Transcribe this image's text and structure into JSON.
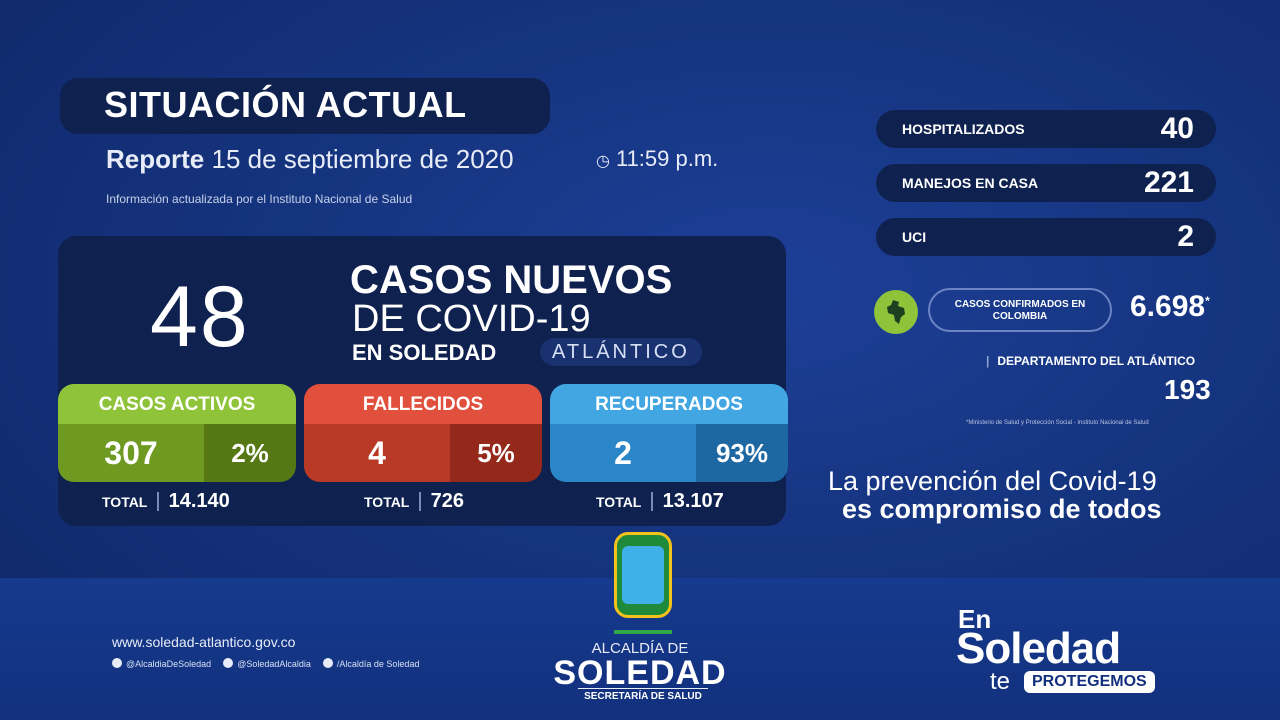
{
  "header": {
    "title": "SITUACIÓN ACTUAL",
    "report_label": "Reporte",
    "report_date": "15 de septiembre de 2020",
    "report_time": "11:59 p.m.",
    "source": "Información actualizada por el Instituto Nacional de Salud"
  },
  "new_cases": {
    "number": "48",
    "line1": "CASOS NUEVOS",
    "line2": "DE COVID-19",
    "line3": "EN SOLEDAD",
    "region": "ATLÁNTICO"
  },
  "cards": {
    "active": {
      "label": "CASOS ACTIVOS",
      "value": "307",
      "percent": "2%",
      "total_label": "TOTAL",
      "total": "14.140",
      "color": "#8fc43a"
    },
    "deceased": {
      "label": "FALLECIDOS",
      "value": "4",
      "percent": "5%",
      "total_label": "TOTAL",
      "total": "726",
      "color": "#e0503d"
    },
    "recovered": {
      "label": "RECUPERADOS",
      "value": "2",
      "percent": "93%",
      "total_label": "TOTAL",
      "total": "13.107",
      "color": "#41a6e2"
    }
  },
  "right": {
    "hospitalized": {
      "label": "HOSPITALIZADOS",
      "value": "40"
    },
    "home": {
      "label": "MANEJOS EN CASA",
      "value": "221"
    },
    "uci": {
      "label": "UCI",
      "value": "2"
    },
    "colombia_label": "CASOS CONFIRMADOS EN COLOMBIA",
    "colombia_value": "6.698",
    "colombia_mark": "*",
    "department_label": "DEPARTAMENTO DEL ATLÁNTICO",
    "department_value": "193",
    "footnote": "*Ministerio de Salud y Protección Social - Instituto Nacional de Salud",
    "slogan_line1": "La prevención del Covid-19",
    "slogan_line2": "es compromiso de todos"
  },
  "footer": {
    "website": "www.soledad-atlantico.gov.co",
    "social_instagram": "@AlcaldiaDeSoledad",
    "social_twitter": "@SoledadAlcaldia",
    "social_facebook": "/Alcaldía de Soledad",
    "alcaldia": "ALCALDÍA DE",
    "soledad": "SOLEDAD",
    "secretaria": "SECRETARÍA DE SALUD",
    "brand_en": "En",
    "brand_soledad": "Soledad",
    "brand_te": "te",
    "brand_protegemos": "PROTEGEMOS"
  },
  "icons": {
    "clock": "clock-icon",
    "map": "colombia-map-icon",
    "crest": "municipal-crest-icon"
  }
}
